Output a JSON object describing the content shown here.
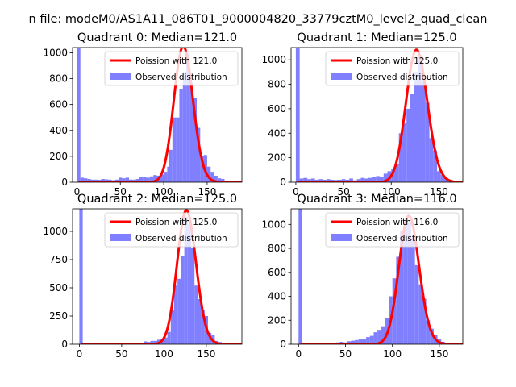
{
  "figure": {
    "suptitle": "n file: modeM0/AS1A11_086T01_9000004820_33779cztM0_level2_quad_clean"
  },
  "colors": {
    "observed": "#7f7fff",
    "poisson": "#ff0000",
    "axis": "#000000",
    "background": "#ffffff"
  },
  "chart_data": [
    {
      "type": "bar",
      "title": "Quadrant 0: Median=121.0",
      "median": 121.0,
      "bin_width": 4,
      "xlim": [
        -5,
        190
      ],
      "ylim": [
        0,
        1040
      ],
      "xticks": [
        0,
        50,
        100,
        150
      ],
      "yticks": [
        0,
        200,
        400,
        600,
        800,
        1000
      ],
      "legend": {
        "location": "upper right",
        "entries": [
          "Poission with 121.0",
          "Observed distribution"
        ]
      },
      "zero_bin": {
        "x": 0,
        "value": 1040
      },
      "tail": [
        [
          4,
          35
        ],
        [
          8,
          30
        ],
        [
          12,
          25
        ],
        [
          16,
          20
        ],
        [
          20,
          20
        ],
        [
          24,
          18
        ],
        [
          28,
          25
        ],
        [
          32,
          22
        ],
        [
          36,
          20
        ],
        [
          40,
          15
        ],
        [
          44,
          20
        ],
        [
          48,
          35
        ],
        [
          52,
          30
        ],
        [
          56,
          35
        ],
        [
          60,
          20
        ],
        [
          64,
          20
        ],
        [
          68,
          25
        ],
        [
          72,
          40
        ],
        [
          76,
          40
        ],
        [
          80,
          35
        ],
        [
          84,
          45
        ],
        [
          88,
          55
        ],
        [
          92,
          50
        ],
        [
          96,
          60
        ],
        [
          100,
          80
        ],
        [
          104,
          120
        ]
      ],
      "peak_values": [
        [
          106,
          250
        ],
        [
          110,
          500
        ],
        [
          114,
          500
        ],
        [
          118,
          720
        ],
        [
          122,
          850
        ],
        [
          126,
          1000
        ],
        [
          130,
          770
        ],
        [
          134,
          650
        ],
        [
          138,
          420
        ],
        [
          142,
          200
        ],
        [
          146,
          210
        ],
        [
          150,
          120
        ],
        [
          154,
          80
        ],
        [
          158,
          50
        ],
        [
          162,
          30
        ],
        [
          166,
          25
        ],
        [
          170,
          10
        ],
        [
          174,
          5
        ]
      ]
    },
    {
      "type": "bar",
      "title": "Quadrant 1: Median=125.0",
      "median": 125.0,
      "bin_width": 4,
      "xlim": [
        -5,
        175
      ],
      "ylim": [
        0,
        1100
      ],
      "xticks": [
        0,
        50,
        100,
        150
      ],
      "yticks": [
        0,
        200,
        400,
        600,
        800,
        1000
      ],
      "legend": {
        "location": "upper right",
        "entries": [
          "Poission with 125.0",
          "Observed distribution"
        ]
      },
      "zero_bin": {
        "x": 0,
        "value": 1100
      },
      "tail": [
        [
          4,
          30
        ],
        [
          8,
          35
        ],
        [
          12,
          25
        ],
        [
          16,
          30
        ],
        [
          20,
          20
        ],
        [
          24,
          25
        ],
        [
          28,
          20
        ],
        [
          32,
          25
        ],
        [
          36,
          20
        ],
        [
          40,
          18
        ],
        [
          44,
          20
        ],
        [
          48,
          25
        ],
        [
          52,
          20
        ],
        [
          56,
          30
        ],
        [
          60,
          15
        ],
        [
          64,
          25
        ],
        [
          68,
          35
        ],
        [
          72,
          30
        ],
        [
          76,
          35
        ],
        [
          80,
          40
        ],
        [
          84,
          50
        ],
        [
          88,
          45
        ],
        [
          92,
          70
        ],
        [
          96,
          90
        ],
        [
          100,
          110
        ],
        [
          104,
          150
        ]
      ],
      "peak_values": [
        [
          108,
          400
        ],
        [
          112,
          480
        ],
        [
          116,
          600
        ],
        [
          120,
          720
        ],
        [
          124,
          900
        ],
        [
          128,
          1030
        ],
        [
          132,
          820
        ],
        [
          136,
          650
        ],
        [
          140,
          360
        ],
        [
          144,
          260
        ],
        [
          148,
          90
        ],
        [
          152,
          60
        ],
        [
          156,
          30
        ],
        [
          160,
          20
        ],
        [
          164,
          10
        ]
      ]
    },
    {
      "type": "bar",
      "title": "Quadrant 2: Median=125.0",
      "median": 125.0,
      "bin_width": 4,
      "xlim": [
        -8,
        192
      ],
      "ylim": [
        0,
        1200
      ],
      "xticks": [
        0,
        50,
        100,
        150
      ],
      "yticks": [
        0,
        250,
        500,
        750,
        1000
      ],
      "legend": {
        "location": "upper right",
        "entries": [
          "Poission with 125.0",
          "Observed distribution"
        ]
      },
      "zero_bin": {
        "x": 0,
        "value": 1200
      },
      "tail": [
        [
          76,
          25
        ],
        [
          80,
          20
        ],
        [
          84,
          30
        ],
        [
          88,
          30
        ],
        [
          92,
          40
        ],
        [
          96,
          45
        ],
        [
          100,
          60
        ],
        [
          104,
          110
        ]
      ],
      "peak_values": [
        [
          108,
          300
        ],
        [
          112,
          520
        ],
        [
          116,
          580
        ],
        [
          120,
          780
        ],
        [
          124,
          1130
        ],
        [
          128,
          1060
        ],
        [
          132,
          850
        ],
        [
          136,
          520
        ],
        [
          140,
          400
        ],
        [
          144,
          300
        ],
        [
          148,
          250
        ],
        [
          152,
          100
        ],
        [
          156,
          80
        ],
        [
          160,
          30
        ],
        [
          164,
          20
        ],
        [
          168,
          10
        ],
        [
          172,
          5
        ]
      ]
    },
    {
      "type": "bar",
      "title": "Quadrant 3: Median=116.0",
      "median": 116.0,
      "bin_width": 4,
      "xlim": [
        -8,
        175
      ],
      "ylim": [
        0,
        1130
      ],
      "xticks": [
        0,
        50,
        100,
        150
      ],
      "yticks": [
        0,
        200,
        400,
        600,
        800,
        1000
      ],
      "legend": {
        "location": "upper right",
        "entries": [
          "Poission with 116.0",
          "Observed distribution"
        ]
      },
      "zero_bin": {
        "x": 0,
        "value": 1130
      },
      "tail": [
        [
          40,
          15
        ],
        [
          44,
          20
        ],
        [
          48,
          15
        ],
        [
          52,
          25
        ],
        [
          56,
          30
        ],
        [
          60,
          35
        ],
        [
          64,
          40
        ],
        [
          68,
          45
        ],
        [
          72,
          60
        ],
        [
          76,
          70
        ],
        [
          80,
          100
        ],
        [
          84,
          120
        ],
        [
          88,
          150
        ],
        [
          92,
          220
        ]
      ],
      "peak_values": [
        [
          96,
          400
        ],
        [
          100,
          550
        ],
        [
          104,
          730
        ],
        [
          108,
          950
        ],
        [
          112,
          1020
        ],
        [
          116,
          1020
        ],
        [
          120,
          880
        ],
        [
          124,
          660
        ],
        [
          128,
          500
        ],
        [
          132,
          380
        ],
        [
          136,
          200
        ],
        [
          140,
          130
        ],
        [
          144,
          80
        ],
        [
          148,
          40
        ],
        [
          152,
          20
        ],
        [
          156,
          10
        ],
        [
          160,
          5
        ],
        [
          164,
          3
        ]
      ]
    }
  ]
}
